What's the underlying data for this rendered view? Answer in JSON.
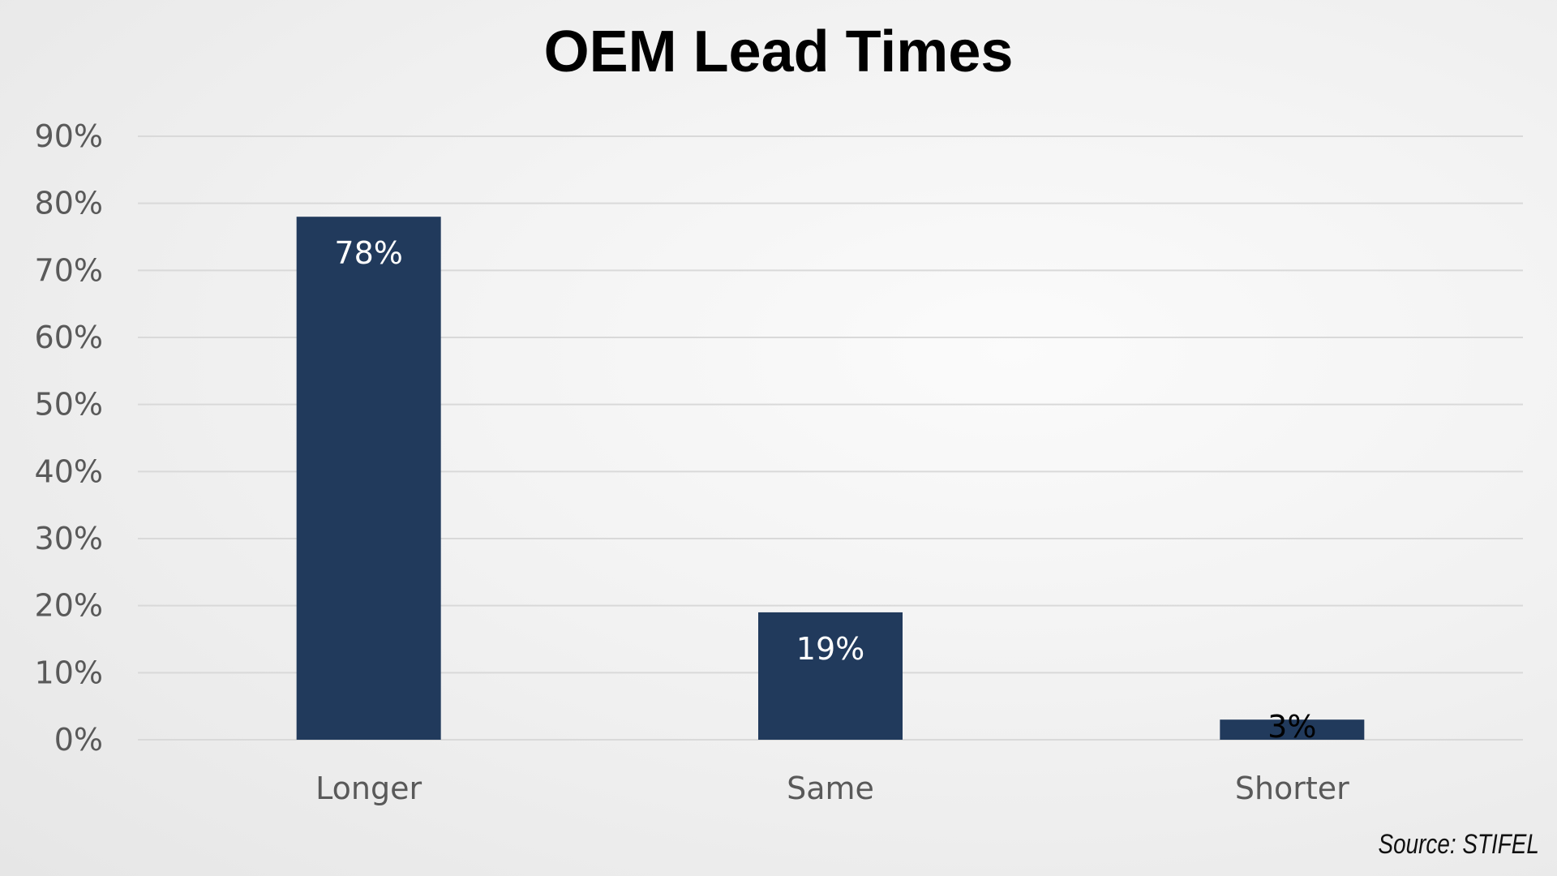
{
  "chart_data": {
    "type": "bar",
    "title": "OEM Lead Times",
    "categories": [
      "Longer",
      "Same",
      "Shorter"
    ],
    "values": [
      78,
      19,
      3
    ],
    "data_labels": [
      "78%",
      "19%",
      "3%"
    ],
    "y_ticks": [
      "0%",
      "10%",
      "20%",
      "30%",
      "40%",
      "50%",
      "60%",
      "70%",
      "80%",
      "90%"
    ],
    "ylim": [
      0,
      90
    ],
    "grid": true,
    "legend": "none",
    "xlabel": "",
    "ylabel": ""
  },
  "source": "Source: STIFEL",
  "colors": {
    "bar": "#213a5c",
    "grid": "#d9d9d9",
    "axis_text": "#595959",
    "label_inside": "#ffffff",
    "label_outside": "#000000"
  }
}
